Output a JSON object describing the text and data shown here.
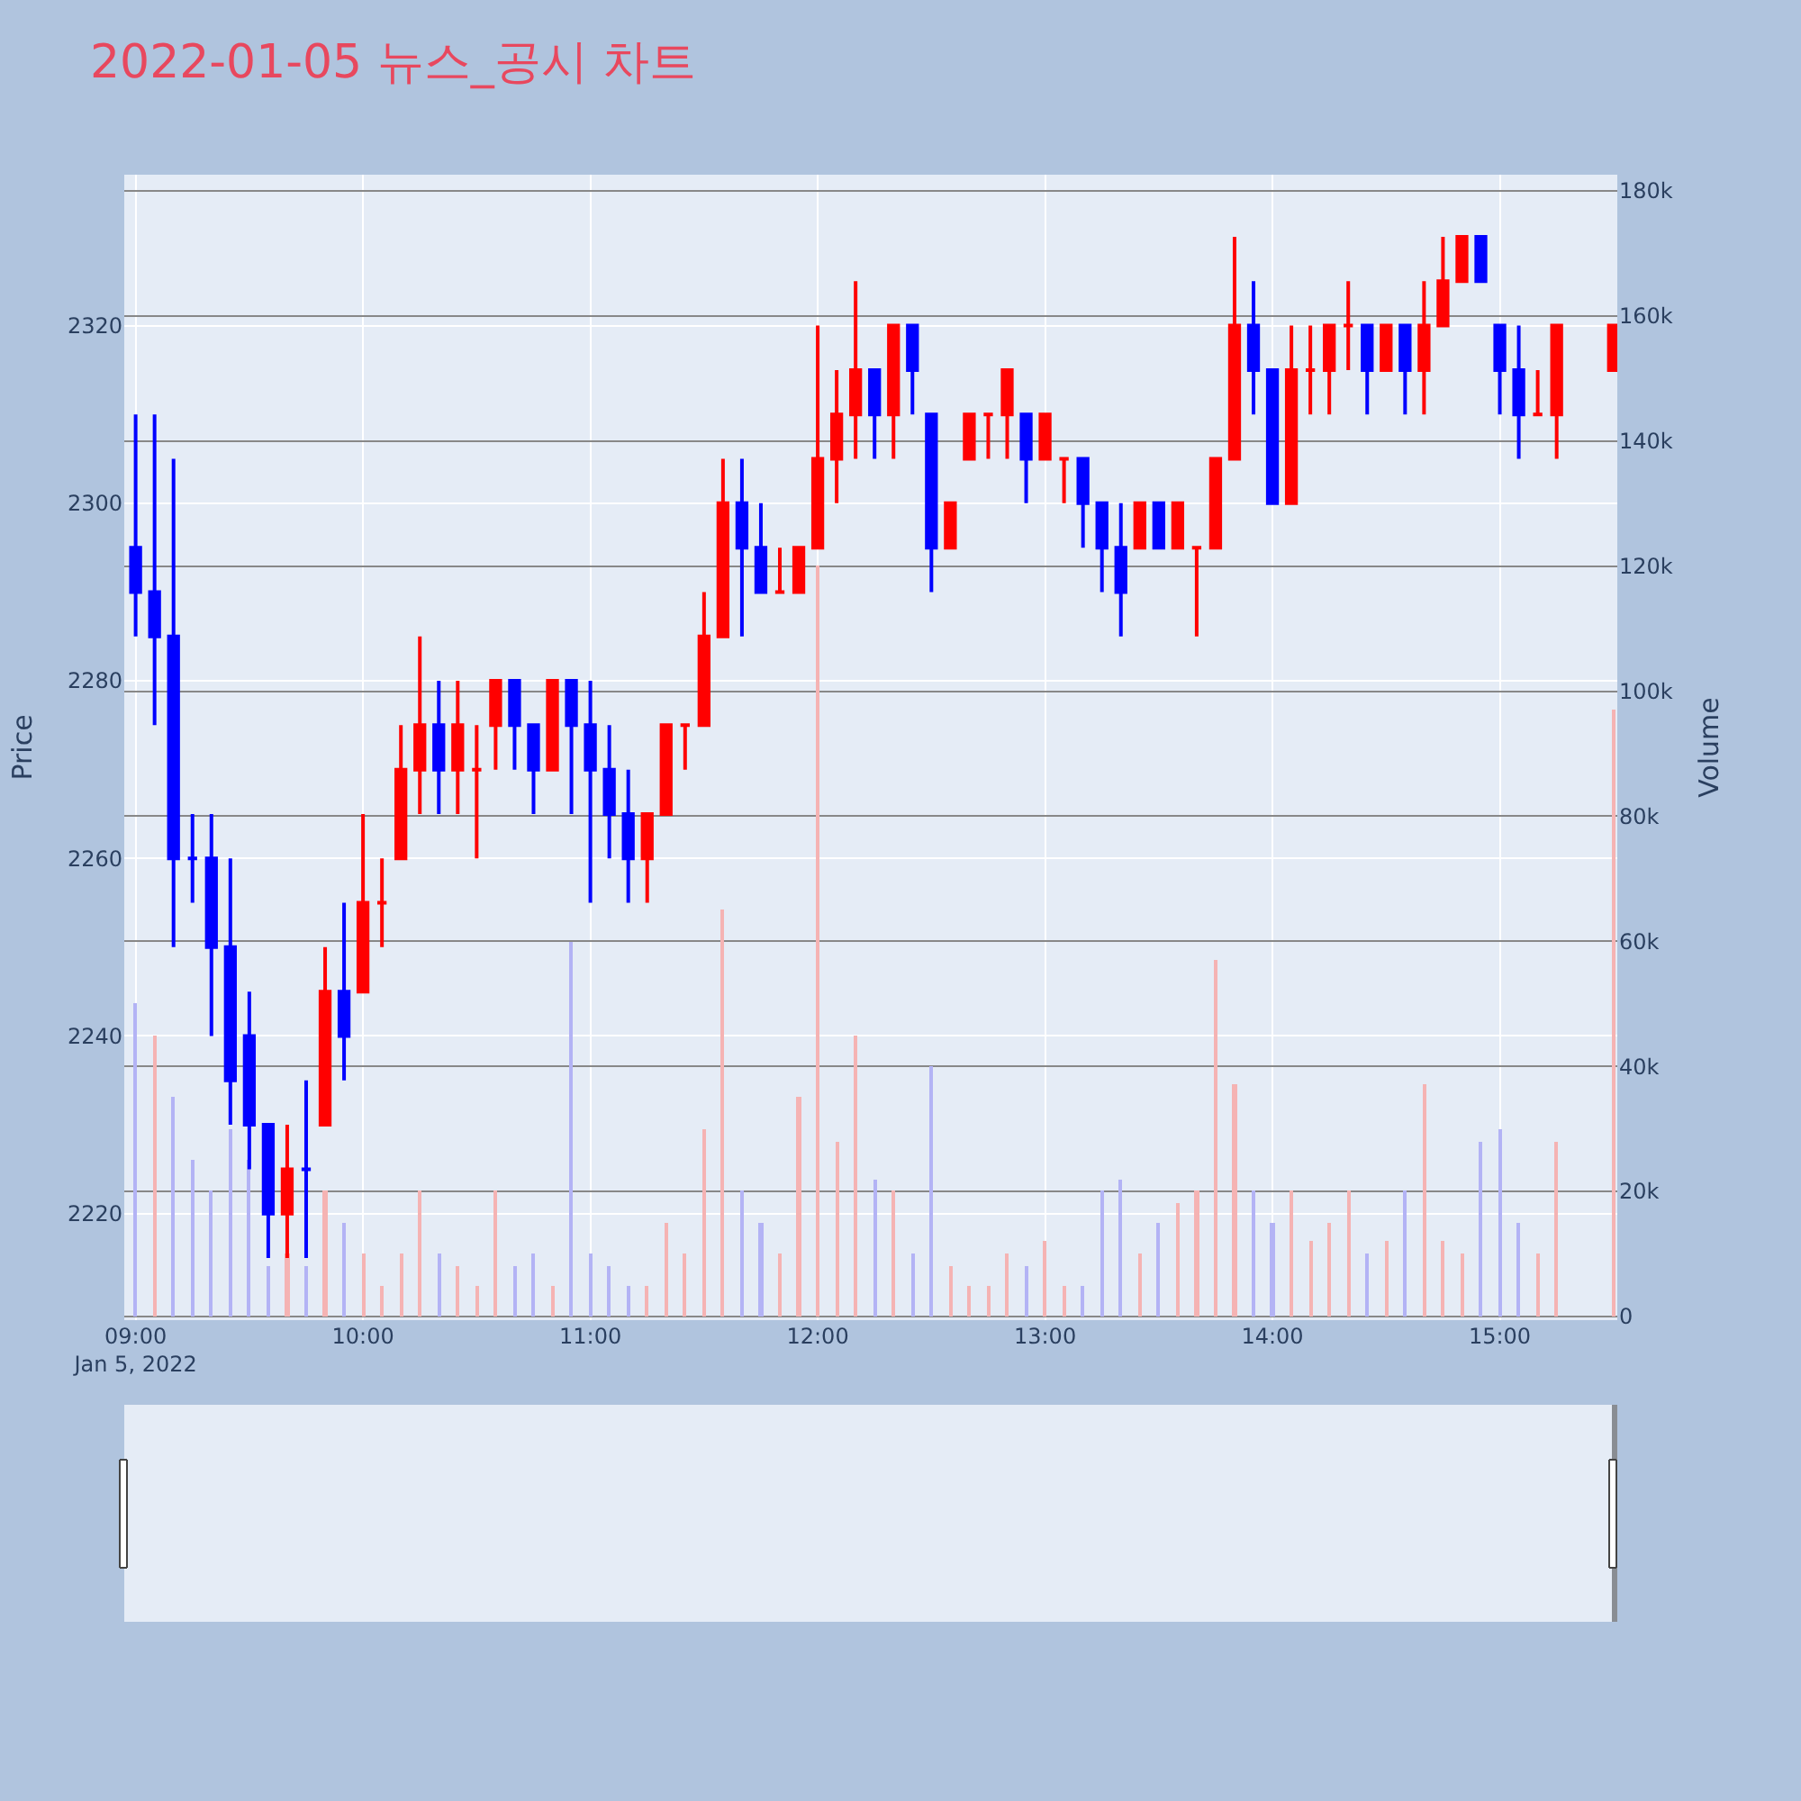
{
  "chart_data": {
    "type": "candlestick",
    "title": "2022-01-05 뉴스_공시 차트",
    "ylabel": "Price",
    "y2label": "Volume",
    "x": [
      "2022-01-05T09:00",
      "2022-01-05T09:05",
      "2022-01-05T09:10",
      "2022-01-05T09:15",
      "2022-01-05T09:20",
      "2022-01-05T09:25",
      "2022-01-05T09:30",
      "2022-01-05T09:35",
      "2022-01-05T09:40",
      "2022-01-05T09:45",
      "2022-01-05T09:50",
      "2022-01-05T09:55",
      "2022-01-05T10:00",
      "2022-01-05T10:05",
      "2022-01-05T10:10",
      "2022-01-05T10:15",
      "2022-01-05T10:20",
      "2022-01-05T10:25",
      "2022-01-05T10:30",
      "2022-01-05T10:35",
      "2022-01-05T10:40",
      "2022-01-05T10:45",
      "2022-01-05T10:50",
      "2022-01-05T10:55",
      "2022-01-05T11:00",
      "2022-01-05T11:05",
      "2022-01-05T11:10",
      "2022-01-05T11:15",
      "2022-01-05T11:20",
      "2022-01-05T11:25",
      "2022-01-05T11:30",
      "2022-01-05T11:35",
      "2022-01-05T11:40",
      "2022-01-05T11:45",
      "2022-01-05T11:50",
      "2022-01-05T11:55",
      "2022-01-05T12:00",
      "2022-01-05T12:05",
      "2022-01-05T12:10",
      "2022-01-05T12:15",
      "2022-01-05T12:20",
      "2022-01-05T12:25",
      "2022-01-05T12:30",
      "2022-01-05T12:35",
      "2022-01-05T12:40",
      "2022-01-05T12:45",
      "2022-01-05T12:50",
      "2022-01-05T12:55",
      "2022-01-05T13:00",
      "2022-01-05T13:05",
      "2022-01-05T13:10",
      "2022-01-05T13:15",
      "2022-01-05T13:20",
      "2022-01-05T13:25",
      "2022-01-05T13:30",
      "2022-01-05T13:35",
      "2022-01-05T13:40",
      "2022-01-05T13:45",
      "2022-01-05T13:50",
      "2022-01-05T13:55",
      "2022-01-05T14:00",
      "2022-01-05T14:05",
      "2022-01-05T14:10",
      "2022-01-05T14:15",
      "2022-01-05T14:20",
      "2022-01-05T14:25",
      "2022-01-05T14:30",
      "2022-01-05T14:35",
      "2022-01-05T14:40",
      "2022-01-05T14:45",
      "2022-01-05T14:50",
      "2022-01-05T14:55",
      "2022-01-05T15:00",
      "2022-01-05T15:05",
      "2022-01-05T15:10",
      "2022-01-05T15:15",
      "2022-01-05T15:30"
    ],
    "ohlc": [
      [
        2295,
        2310,
        2285,
        2290
      ],
      [
        2290,
        2310,
        2275,
        2285
      ],
      [
        2285,
        2305,
        2250,
        2260
      ],
      [
        2260,
        2265,
        2255,
        2260
      ],
      [
        2260,
        2265,
        2240,
        2250
      ],
      [
        2250,
        2260,
        2230,
        2235
      ],
      [
        2240,
        2245,
        2225,
        2230
      ],
      [
        2230,
        2230,
        2215,
        2220
      ],
      [
        2220,
        2230,
        2215,
        2225
      ],
      [
        2225,
        2235,
        2215,
        2225
      ],
      [
        2230,
        2250,
        2230,
        2245
      ],
      [
        2245,
        2255,
        2235,
        2240
      ],
      [
        2245,
        2265,
        2245,
        2255
      ],
      [
        2255,
        2260,
        2250,
        2255
      ],
      [
        2260,
        2275,
        2260,
        2270
      ],
      [
        2270,
        2285,
        2265,
        2275
      ],
      [
        2275,
        2280,
        2265,
        2270
      ],
      [
        2270,
        2280,
        2265,
        2275
      ],
      [
        2270,
        2275,
        2260,
        2270
      ],
      [
        2275,
        2280,
        2270,
        2280
      ],
      [
        2280,
        2280,
        2270,
        2275
      ],
      [
        2275,
        2275,
        2265,
        2270
      ],
      [
        2270,
        2280,
        2270,
        2280
      ],
      [
        2280,
        2280,
        2265,
        2275
      ],
      [
        2275,
        2280,
        2255,
        2270
      ],
      [
        2270,
        2275,
        2260,
        2265
      ],
      [
        2265,
        2270,
        2255,
        2260
      ],
      [
        2260,
        2265,
        2255,
        2265
      ],
      [
        2265,
        2275,
        2265,
        2275
      ],
      [
        2275,
        2275,
        2270,
        2275
      ],
      [
        2275,
        2290,
        2275,
        2285
      ],
      [
        2285,
        2305,
        2285,
        2300
      ],
      [
        2300,
        2305,
        2285,
        2295
      ],
      [
        2295,
        2300,
        2290,
        2290
      ],
      [
        2290,
        2295,
        2290,
        2290
      ],
      [
        2290,
        2295,
        2290,
        2295
      ],
      [
        2295,
        2320,
        2295,
        2305
      ],
      [
        2305,
        2315,
        2300,
        2310
      ],
      [
        2310,
        2325,
        2305,
        2315
      ],
      [
        2315,
        2315,
        2305,
        2310
      ],
      [
        2310,
        2320,
        2305,
        2320
      ],
      [
        2320,
        2320,
        2310,
        2315
      ],
      [
        2310,
        2310,
        2290,
        2295
      ],
      [
        2295,
        2300,
        2295,
        2300
      ],
      [
        2305,
        2310,
        2305,
        2310
      ],
      [
        2310,
        2310,
        2305,
        2310
      ],
      [
        2310,
        2315,
        2305,
        2315
      ],
      [
        2310,
        2310,
        2300,
        2305
      ],
      [
        2305,
        2310,
        2305,
        2310
      ],
      [
        2305,
        2305,
        2300,
        2305
      ],
      [
        2305,
        2305,
        2295,
        2300
      ],
      [
        2300,
        2300,
        2290,
        2295
      ],
      [
        2295,
        2300,
        2285,
        2290
      ],
      [
        2295,
        2300,
        2295,
        2300
      ],
      [
        2300,
        2300,
        2295,
        2295
      ],
      [
        2295,
        2300,
        2295,
        2300
      ],
      [
        2295,
        2295,
        2285,
        2295
      ],
      [
        2295,
        2305,
        2295,
        2305
      ],
      [
        2305,
        2330,
        2305,
        2320
      ],
      [
        2320,
        2325,
        2310,
        2315
      ],
      [
        2315,
        2315,
        2300,
        2300
      ],
      [
        2300,
        2320,
        2300,
        2315
      ],
      [
        2315,
        2320,
        2310,
        2315
      ],
      [
        2315,
        2320,
        2310,
        2320
      ],
      [
        2320,
        2325,
        2315,
        2320
      ],
      [
        2320,
        2320,
        2310,
        2315
      ],
      [
        2315,
        2320,
        2315,
        2320
      ],
      [
        2320,
        2320,
        2310,
        2315
      ],
      [
        2315,
        2325,
        2310,
        2320
      ],
      [
        2320,
        2330,
        2320,
        2325
      ],
      [
        2325,
        2330,
        2325,
        2330
      ],
      [
        2330,
        2330,
        2325,
        2325
      ],
      [
        2320,
        2320,
        2310,
        2315
      ],
      [
        2315,
        2320,
        2305,
        2310
      ],
      [
        2310,
        2315,
        2310,
        2310
      ],
      [
        2310,
        2320,
        2305,
        2320
      ],
      [
        2315,
        2320,
        2315,
        2320
      ]
    ],
    "colors": [
      "#0000ff",
      "#0000ff",
      "#0000ff",
      "#0000ff",
      "#0000ff",
      "#0000ff",
      "#0000ff",
      "#0000ff",
      "#ff0000",
      "#0000ff",
      "#ff0000",
      "#0000ff",
      "#ff0000",
      "#ff0000",
      "#ff0000",
      "#ff0000",
      "#0000ff",
      "#ff0000",
      "#ff0000",
      "#ff0000",
      "#0000ff",
      "#0000ff",
      "#ff0000",
      "#0000ff",
      "#0000ff",
      "#0000ff",
      "#0000ff",
      "#ff0000",
      "#ff0000",
      "#ff0000",
      "#ff0000",
      "#ff0000",
      "#0000ff",
      "#0000ff",
      "#ff0000",
      "#ff0000",
      "#ff0000",
      "#ff0000",
      "#ff0000",
      "#0000ff",
      "#ff0000",
      "#0000ff",
      "#0000ff",
      "#ff0000",
      "#ff0000",
      "#ff0000",
      "#ff0000",
      "#0000ff",
      "#ff0000",
      "#ff0000",
      "#0000ff",
      "#0000ff",
      "#0000ff",
      "#ff0000",
      "#0000ff",
      "#ff0000",
      "#ff0000",
      "#ff0000",
      "#ff0000",
      "#0000ff",
      "#0000ff",
      "#ff0000",
      "#ff0000",
      "#ff0000",
      "#ff0000",
      "#0000ff",
      "#ff0000",
      "#0000ff",
      "#ff0000",
      "#ff0000",
      "#ff0000",
      "#0000ff",
      "#0000ff",
      "#0000ff",
      "#ff0000",
      "#ff0000",
      "#ff0000"
    ],
    "series": [
      {
        "type": "bar",
        "axis": "y2",
        "values": [
          50000,
          45000,
          35000,
          25000,
          20000,
          30000,
          25000,
          8000,
          10000,
          8000,
          20000,
          15000,
          10000,
          5000,
          10000,
          20000,
          10000,
          8000,
          5000,
          20000,
          8000,
          10000,
          5000,
          60000,
          10000,
          8000,
          5000,
          5000,
          15000,
          10000,
          30000,
          65000,
          20000,
          15000,
          10000,
          35000,
          120000,
          28000,
          45000,
          22000,
          20000,
          10000,
          40000,
          8000,
          5000,
          5000,
          10000,
          8000,
          12000,
          5000,
          5000,
          20000,
          22000,
          10000,
          15000,
          18000,
          20000,
          57000,
          37000,
          20000,
          15000,
          20000,
          12000,
          15000,
          20000,
          10000,
          12000,
          20000,
          37000,
          12000,
          10000,
          28000,
          30000,
          15000,
          10000,
          28000,
          97000
        ],
        "colors": [
          "#b3b3f5",
          "#f5b3b3",
          "#b3b3f5",
          "#b3b3f5",
          "#b3b3f5",
          "#b3b3f5",
          "#b3b3f5",
          "#b3b3f5",
          "#f5b3b3",
          "#b3b3f5",
          "#f5b3b3",
          "#b3b3f5",
          "#f5b3b3",
          "#f5b3b3",
          "#f5b3b3",
          "#f5b3b3",
          "#b3b3f5",
          "#f5b3b3",
          "#f5b3b3",
          "#f5b3b3",
          "#b3b3f5",
          "#b3b3f5",
          "#f5b3b3",
          "#b3b3f5",
          "#b3b3f5",
          "#b3b3f5",
          "#b3b3f5",
          "#f5b3b3",
          "#f5b3b3",
          "#f5b3b3",
          "#f5b3b3",
          "#f5b3b3",
          "#b3b3f5",
          "#b3b3f5",
          "#f5b3b3",
          "#f5b3b3",
          "#f5b3b3",
          "#f5b3b3",
          "#f5b3b3",
          "#b3b3f5",
          "#f5b3b3",
          "#b3b3f5",
          "#b3b3f5",
          "#f5b3b3",
          "#f5b3b3",
          "#f5b3b3",
          "#f5b3b3",
          "#b3b3f5",
          "#f5b3b3",
          "#f5b3b3",
          "#b3b3f5",
          "#b3b3f5",
          "#b3b3f5",
          "#f5b3b3",
          "#b3b3f5",
          "#f5b3b3",
          "#f5b3b3",
          "#f5b3b3",
          "#f5b3b3",
          "#b3b3f5",
          "#b3b3f5",
          "#f5b3b3",
          "#f5b3b3",
          "#f5b3b3",
          "#f5b3b3",
          "#b3b3f5",
          "#f5b3b3",
          "#b3b3f5",
          "#f5b3b3",
          "#f5b3b3",
          "#f5b3b3",
          "#b3b3f5",
          "#b3b3f5",
          "#b3b3f5",
          "#f5b3b3",
          "#f5b3b3",
          "#f5b3b3"
        ]
      }
    ],
    "xlim": [
      "2022-01-05T08:57",
      "2022-01-05T15:31"
    ],
    "xticks": [
      {
        "value": "2022-01-05T09:00",
        "label": "09:00\nJan 5, 2022"
      },
      {
        "value": "2022-01-05T10:00",
        "label": "10:00"
      },
      {
        "value": "2022-01-05T11:00",
        "label": "11:00"
      },
      {
        "value": "2022-01-05T12:00",
        "label": "12:00"
      },
      {
        "value": "2022-01-05T13:00",
        "label": "13:00"
      },
      {
        "value": "2022-01-05T14:00",
        "label": "14:00"
      },
      {
        "value": "2022-01-05T15:00",
        "label": "15:00"
      }
    ],
    "ylim": [
      2208,
      2337
    ],
    "yticks": [
      2220,
      2240,
      2260,
      2280,
      2300,
      2320
    ],
    "y2lim": [
      -600,
      182600
    ],
    "y2ticks": [
      {
        "value": 0,
        "label": "0"
      },
      {
        "value": 20000,
        "label": "20k"
      },
      {
        "value": 40000,
        "label": "40k"
      },
      {
        "value": 60000,
        "label": "60k"
      },
      {
        "value": 80000,
        "label": "80k"
      },
      {
        "value": 100000,
        "label": "100k"
      },
      {
        "value": 120000,
        "label": "120k"
      },
      {
        "value": 140000,
        "label": "140k"
      },
      {
        "value": 160000,
        "label": "160k"
      },
      {
        "value": 180000,
        "label": "180k"
      }
    ],
    "grid": true
  }
}
